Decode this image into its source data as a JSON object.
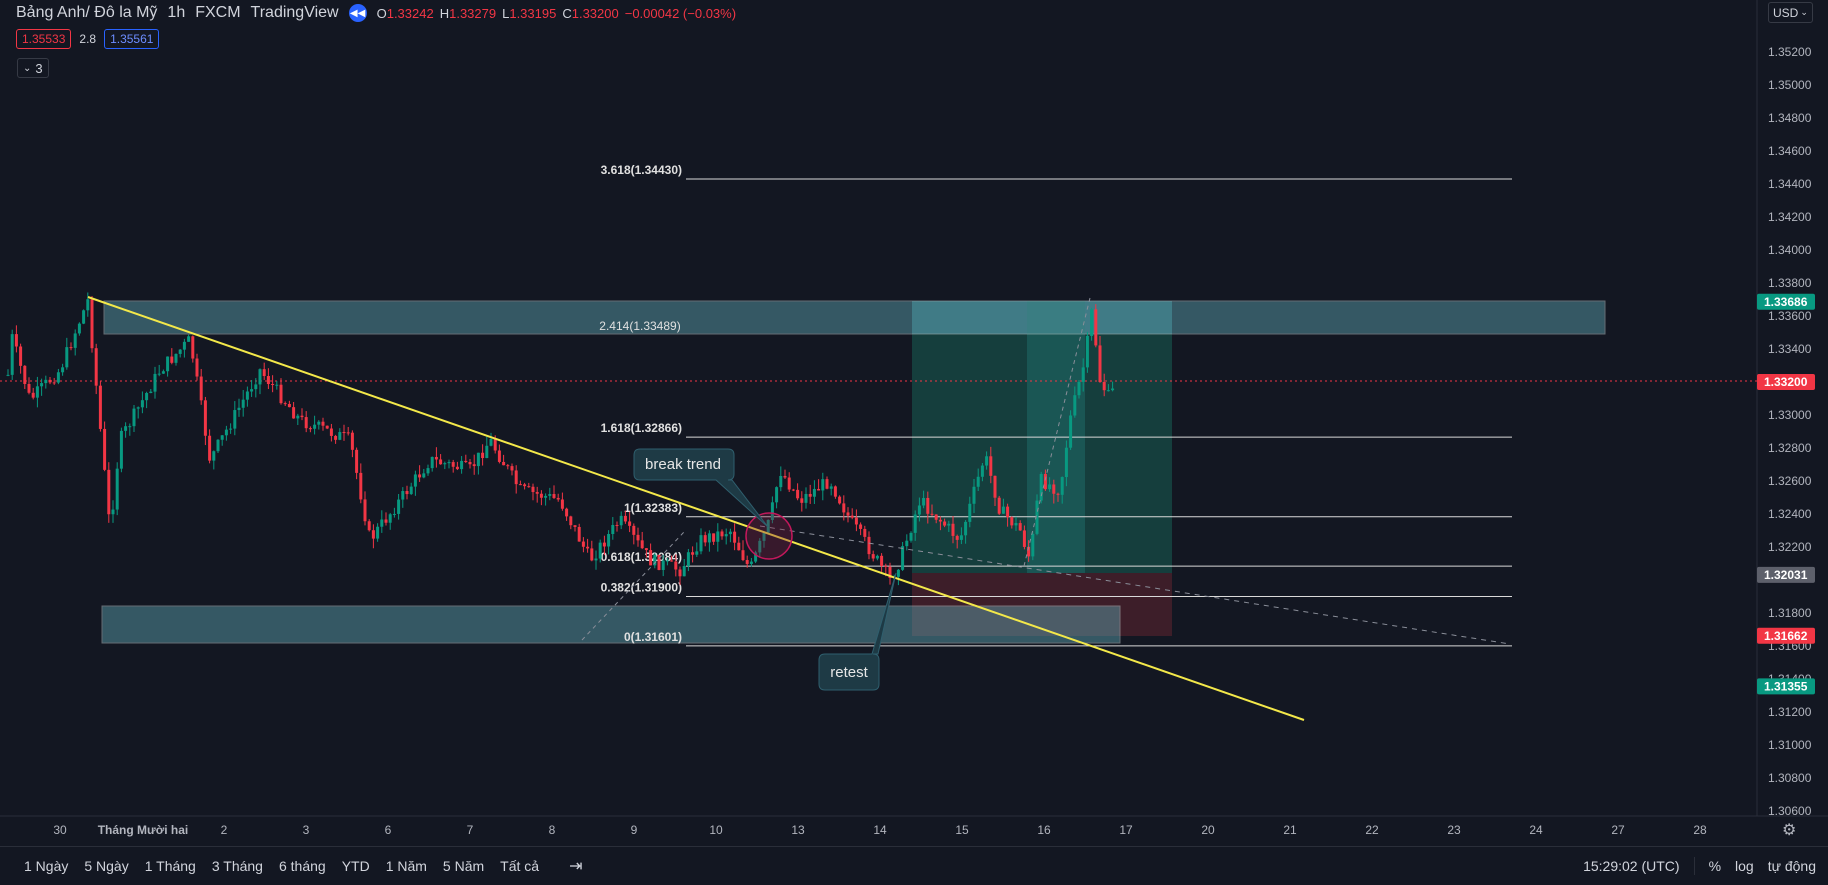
{
  "header": {
    "symbol": "Bảng Anh/ Đô la Mỹ",
    "interval": "1h",
    "broker": "FXCM",
    "source": "TradingView",
    "ohlc": {
      "o_label": "O",
      "o": "1.33242",
      "h_label": "H",
      "h": "1.33279",
      "l_label": "L",
      "l": "1.33195",
      "c_label": "C",
      "c": "1.33200",
      "change": "−0.00042 (−0.03%)"
    },
    "sell_price": "1.35533",
    "spread": "2.8",
    "buy_price": "1.35561",
    "indicators_count": "3",
    "currency": "USD"
  },
  "price_axis": {
    "ticks": [
      "1.35200",
      "1.35000",
      "1.34800",
      "1.34600",
      "1.34400",
      "1.34200",
      "1.34000",
      "1.33800",
      "1.33600",
      "1.33400",
      "1.33000",
      "1.32800",
      "1.32600",
      "1.32400",
      "1.32200",
      "1.31800",
      "1.31600",
      "1.31400",
      "1.31200",
      "1.31000",
      "1.30800",
      "1.30600"
    ],
    "labels": [
      {
        "text": "1.33686",
        "color": "#089981"
      },
      {
        "text": "1.33200",
        "color": "#f23645"
      },
      {
        "text": "1.32031",
        "color": "#5d606b"
      },
      {
        "text": "1.31662",
        "color": "#f23645"
      },
      {
        "text": "1.31355",
        "color": "#089981"
      }
    ]
  },
  "time_axis": {
    "ticks": [
      "30",
      "Tháng Mười hai",
      "2",
      "3",
      "6",
      "7",
      "8",
      "9",
      "10",
      "13",
      "14",
      "15",
      "16",
      "17",
      "20",
      "21",
      "22",
      "23",
      "24",
      "27",
      "28"
    ]
  },
  "fibonacci": [
    {
      "text": "3.618(1.34430)"
    },
    {
      "text": "2.414(1.33489)"
    },
    {
      "text": "1.618(1.32866)"
    },
    {
      "text": "1(1.32383)"
    },
    {
      "text": "0.618(1.32084)"
    },
    {
      "text": "0.382(1.31900)"
    },
    {
      "text": "0(1.31601)"
    }
  ],
  "annotations": {
    "break_trend": "break trend",
    "retest": "retest"
  },
  "colors": {
    "background": "#131722",
    "up": "#089981",
    "down": "#f23645",
    "trendline": "#f3e84a",
    "zone": "#5fa8b4",
    "target": "#1f7a74",
    "stop": "#6b2a36"
  },
  "bottom_bar": {
    "ranges": [
      "1 Ngày",
      "5 Ngày",
      "1 Tháng",
      "3 Tháng",
      "6 tháng",
      "YTD",
      "1 Năm",
      "5 Năm",
      "Tất cả"
    ],
    "time": "15:29:02 (UTC)",
    "percent": "%",
    "log": "log",
    "auto": "tự động"
  }
}
